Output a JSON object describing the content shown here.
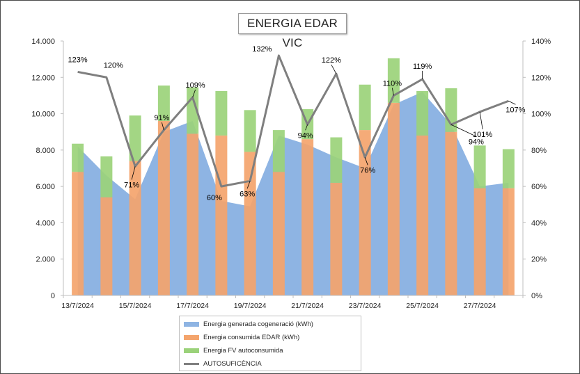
{
  "colors": {
    "area": "#8eb4e3",
    "consumed": "#f4a46c",
    "pv": "#9bd27a",
    "line": "#7f7f7f",
    "axis": "#bfbfbf",
    "grid": "#d9d9d9",
    "text": "#262626"
  },
  "chart_data": {
    "type": "combo",
    "title": "ENERGIA EDAR VIC",
    "dates": [
      "13/7/2024",
      "14/7/2024",
      "15/7/2024",
      "16/7/2024",
      "17/7/2024",
      "18/7/2024",
      "19/7/2024",
      "20/7/2024",
      "21/7/2024",
      "22/7/2024",
      "23/7/2024",
      "24/7/2024",
      "25/7/2024",
      "26/7/2024",
      "27/7/2024",
      "28/7/2024"
    ],
    "x_tick_labels": [
      "13/7/2024",
      "",
      "15/7/2024",
      "",
      "17/7/2024",
      "",
      "19/7/2024",
      "",
      "21/7/2024",
      "",
      "23/7/2024",
      "",
      "25/7/2024",
      "",
      "27/7/2024",
      ""
    ],
    "y_left": {
      "min": 0,
      "max": 14000,
      "ticks": [
        "0",
        "2.000",
        "4.000",
        "6.000",
        "8.000",
        "10.000",
        "12.000",
        "14.000"
      ]
    },
    "y_right": {
      "min": 0,
      "max": 140,
      "ticks": [
        "0%",
        "20%",
        "40%",
        "60%",
        "80%",
        "100%",
        "120%",
        "140%"
      ]
    },
    "series": [
      {
        "name": "Energia generada cogeneració (kWh)",
        "type": "area",
        "axis": "left",
        "values": [
          8200,
          6600,
          5300,
          9000,
          9600,
          5200,
          4900,
          8800,
          8300,
          7600,
          7000,
          10500,
          11200,
          9400,
          6000,
          6200
        ]
      },
      {
        "name": "Energia consumida EDAR (kWh)",
        "type": "stacked-bar",
        "axis": "left",
        "values": [
          6800,
          5400,
          7400,
          9600,
          8900,
          8800,
          7900,
          6800,
          8600,
          6200,
          9100,
          10600,
          8800,
          9000,
          5900,
          5900
        ]
      },
      {
        "name": "Energia FV autoconsumida",
        "type": "stacked-bar",
        "axis": "left",
        "values": [
          1550,
          2250,
          2500,
          1950,
          2550,
          2450,
          2300,
          2300,
          1650,
          2500,
          2500,
          2450,
          2450,
          2400,
          2350,
          2150
        ]
      },
      {
        "name": "AUTOSUFICÈNCIA",
        "type": "line",
        "axis": "right",
        "values": [
          123,
          120,
          71,
          91,
          109,
          60,
          63,
          132,
          94,
          122,
          76,
          110,
          119,
          94,
          101,
          107
        ]
      }
    ],
    "point_labels": [
      "123%",
      "120%",
      "71%",
      "91%",
      "109%",
      "60%",
      "63%",
      "132%",
      "94%",
      "122%",
      "76%",
      "110%",
      "119%",
      "94%",
      "101%",
      "107%"
    ],
    "legend": [
      "Energia generada cogeneració (kWh)",
      "Energia consumida EDAR (kWh)",
      "Energia FV autoconsumida",
      "AUTOSUFICÈNCIA"
    ]
  }
}
